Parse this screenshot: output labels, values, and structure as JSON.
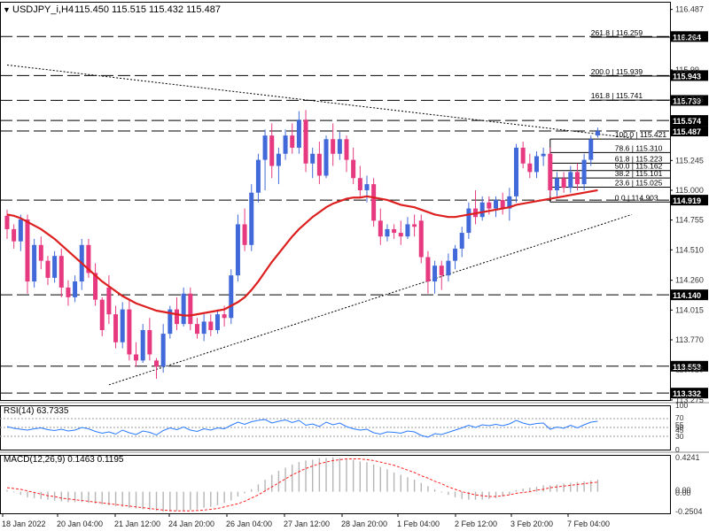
{
  "header": {
    "arrow": "▼",
    "symbol": "USDJPY_i,H4",
    "ohlc": "115.450 115.515 115.432 115.487"
  },
  "colors": {
    "bull": "#4169d9",
    "bear": "#e6397f",
    "ma": "#dd1f1f",
    "rsi": "#2979ff",
    "macd_hist": "#b5b5b5",
    "macd_signal": "#ff2020",
    "label_bg": "#000000",
    "label_text": "#ffffff"
  },
  "chart_data": [
    {
      "type": "candlestick",
      "title": "USDJPY_i,H4",
      "ylim": [
        113.275,
        116.55
      ],
      "y_ticks": [
        "116.487",
        "116.25",
        "115.99",
        "115.745",
        "115.245",
        "115.000",
        "114.755",
        "114.510",
        "114.260",
        "114.015",
        "113.770",
        "113.525",
        "113.275"
      ],
      "x_labels": [
        "18 Jan 2022",
        "20 Jan 04:00",
        "21 Jan 12:00",
        "24 Jan 20:00",
        "26 Jan 04:00",
        "27 Jan 12:00",
        "28 Jan 20:00",
        "1 Feb 04:00",
        "2 Feb 12:00",
        "3 Feb 20:00",
        "7 Feb 04:00"
      ],
      "candles": [
        [
          114.79,
          114.84,
          114.6,
          114.68
        ],
        [
          114.68,
          114.72,
          114.52,
          114.58
        ],
        [
          114.58,
          114.8,
          114.5,
          114.76
        ],
        [
          114.76,
          114.8,
          114.15,
          114.25
        ],
        [
          114.25,
          114.6,
          114.2,
          114.55
        ],
        [
          114.55,
          114.62,
          114.35,
          114.42
        ],
        [
          114.42,
          114.46,
          114.22,
          114.28
        ],
        [
          114.28,
          114.5,
          114.24,
          114.46
        ],
        [
          114.46,
          114.52,
          114.12,
          114.2
        ],
        [
          114.2,
          114.26,
          114.05,
          114.12
        ],
        [
          114.12,
          114.3,
          114.08,
          114.25
        ],
        [
          114.25,
          114.6,
          114.18,
          114.55
        ],
        [
          114.55,
          114.6,
          114.28,
          114.32
        ],
        [
          114.32,
          114.4,
          114.05,
          114.1
        ],
        [
          114.1,
          114.12,
          113.8,
          113.85
        ],
        [
          114.2,
          114.3,
          113.9,
          113.98
        ],
        [
          113.98,
          114.05,
          113.7,
          113.75
        ],
        [
          113.75,
          114.08,
          113.7,
          114.02
        ],
        [
          114.02,
          114.1,
          113.6,
          113.65
        ],
        [
          113.65,
          113.75,
          113.55,
          113.6
        ],
        [
          113.6,
          113.9,
          113.58,
          113.85
        ],
        [
          113.85,
          113.95,
          113.6,
          113.65
        ],
        [
          113.6,
          113.62,
          113.45,
          113.55
        ],
        [
          113.55,
          113.9,
          113.5,
          113.82
        ],
        [
          113.82,
          114.05,
          113.78,
          114.02
        ],
        [
          114.02,
          114.12,
          113.85,
          113.9
        ],
        [
          113.9,
          114.2,
          113.88,
          114.15
        ],
        [
          114.15,
          114.2,
          113.85,
          113.9
        ],
        [
          113.9,
          113.95,
          113.78,
          113.82
        ],
        [
          113.82,
          113.98,
          113.76,
          113.92
        ],
        [
          113.92,
          113.98,
          113.8,
          113.85
        ],
        [
          113.85,
          114.02,
          113.82,
          113.98
        ],
        [
          113.98,
          114.05,
          113.88,
          113.95
        ],
        [
          113.95,
          114.35,
          113.9,
          114.3
        ],
        [
          114.3,
          114.8,
          114.25,
          114.72
        ],
        [
          114.72,
          114.85,
          114.5,
          114.55
        ],
        [
          114.55,
          115.05,
          114.5,
          114.98
        ],
        [
          114.98,
          115.3,
          114.9,
          115.25
        ],
        [
          115.25,
          115.5,
          115.0,
          115.45
        ],
        [
          115.45,
          115.55,
          115.1,
          115.2
        ],
        [
          115.2,
          115.35,
          115.05,
          115.3
        ],
        [
          115.3,
          115.5,
          115.25,
          115.45
        ],
        [
          115.45,
          115.55,
          115.3,
          115.35
        ],
        [
          115.35,
          115.65,
          115.3,
          115.58
        ],
        [
          115.58,
          115.66,
          115.15,
          115.22
        ],
        [
          115.22,
          115.35,
          115.1,
          115.3
        ],
        [
          115.3,
          115.4,
          115.05,
          115.12
        ],
        [
          115.12,
          115.45,
          115.1,
          115.42
        ],
        [
          115.42,
          115.55,
          115.2,
          115.3
        ],
        [
          115.3,
          115.48,
          115.25,
          115.42
        ],
        [
          115.42,
          115.45,
          115.15,
          115.25
        ],
        [
          115.25,
          115.35,
          115.05,
          115.1
        ],
        [
          115.1,
          115.2,
          114.95,
          115.0
        ],
        [
          115.0,
          115.12,
          114.9,
          115.05
        ],
        [
          115.05,
          115.1,
          114.7,
          114.75
        ],
        [
          114.75,
          114.85,
          114.55,
          114.62
        ],
        [
          114.62,
          114.72,
          114.58,
          114.68
        ],
        [
          114.68,
          114.72,
          114.6,
          114.65
        ],
        [
          114.65,
          114.75,
          114.55,
          114.62
        ],
        [
          114.62,
          114.78,
          114.6,
          114.72
        ],
        [
          114.72,
          114.8,
          114.62,
          114.7
        ],
        [
          114.75,
          114.8,
          114.4,
          114.45
        ],
        [
          114.45,
          114.5,
          114.15,
          114.25
        ],
        [
          114.25,
          114.42,
          114.15,
          114.38
        ],
        [
          114.38,
          114.42,
          114.18,
          114.3
        ],
        [
          114.3,
          114.48,
          114.25,
          114.42
        ],
        [
          114.42,
          114.55,
          114.35,
          114.52
        ],
        [
          114.52,
          114.7,
          114.45,
          114.65
        ],
        [
          114.65,
          114.9,
          114.6,
          114.85
        ],
        [
          114.85,
          115.0,
          114.72,
          114.78
        ],
        [
          114.78,
          114.95,
          114.75,
          114.9
        ],
        [
          114.9,
          114.95,
          114.8,
          114.85
        ],
        [
          114.85,
          114.95,
          114.78,
          114.92
        ],
        [
          114.92,
          114.98,
          114.8,
          114.85
        ],
        [
          114.85,
          115.02,
          114.75,
          114.95
        ],
        [
          114.95,
          115.38,
          114.9,
          115.35
        ],
        [
          115.35,
          115.4,
          115.18,
          115.22
        ],
        [
          115.22,
          115.3,
          115.1,
          115.15
        ],
        [
          115.15,
          115.32,
          115.1,
          115.28
        ],
        [
          115.28,
          115.35,
          115.2,
          115.3
        ],
        [
          115.3,
          115.35,
          114.95,
          115.0
        ],
        [
          115.0,
          115.15,
          114.95,
          115.1
        ],
        [
          115.1,
          115.15,
          114.98,
          115.02
        ],
        [
          115.02,
          115.2,
          114.98,
          115.15
        ],
        [
          115.15,
          115.22,
          115.0,
          115.05
        ],
        [
          115.05,
          115.3,
          115.0,
          115.25
        ],
        [
          115.25,
          115.45,
          115.2,
          115.42
        ],
        [
          115.45,
          115.515,
          115.432,
          115.487
        ]
      ],
      "ma": [
        114.8,
        114.79,
        114.77,
        114.74,
        114.71,
        114.68,
        114.64,
        114.6,
        114.55,
        114.5,
        114.45,
        114.4,
        114.35,
        114.3,
        114.25,
        114.21,
        114.17,
        114.13,
        114.1,
        114.07,
        114.05,
        114.03,
        114.01,
        114.0,
        113.99,
        113.98,
        113.97,
        113.97,
        113.98,
        113.99,
        114.0,
        114.01,
        114.02,
        114.05,
        114.08,
        114.12,
        114.18,
        114.25,
        114.33,
        114.41,
        114.48,
        114.55,
        114.62,
        114.68,
        114.73,
        114.78,
        114.82,
        114.86,
        114.89,
        114.91,
        114.93,
        114.94,
        114.94,
        114.95,
        114.94,
        114.93,
        114.92,
        114.9,
        114.88,
        114.87,
        114.86,
        114.84,
        114.82,
        114.8,
        114.79,
        114.78,
        114.78,
        114.79,
        114.8,
        114.81,
        114.82,
        114.83,
        114.84,
        114.85,
        114.86,
        114.88,
        114.89,
        114.9,
        114.91,
        114.92,
        114.93,
        114.94,
        114.95,
        114.96,
        114.97,
        114.98,
        114.99,
        115.0
      ],
      "h_levels": [
        {
          "value": 116.264,
          "label": "116.264"
        },
        {
          "value": 115.943,
          "label": "115.943"
        },
        {
          "value": 115.739,
          "label": "115.739"
        },
        {
          "value": 115.574,
          "label": "115.574"
        },
        {
          "value": 115.487,
          "label": "115.487"
        },
        {
          "value": 114.919,
          "label": "114.919"
        },
        {
          "value": 114.14,
          "label": "114.140"
        },
        {
          "value": 113.553,
          "label": "113.553"
        },
        {
          "value": 113.332,
          "label": "113.332"
        }
      ],
      "fibonacci": [
        {
          "label": "261.8 | 116.259",
          "value": 116.259,
          "extension": true
        },
        {
          "label": "200.0 | 115.939",
          "value": 115.939,
          "extension": true
        },
        {
          "label": "161.8 | 115.741",
          "value": 115.741,
          "extension": true
        },
        {
          "label": "100.0 | 115.421",
          "value": 115.421,
          "extension": false
        },
        {
          "label": "78.6 | 115.310",
          "value": 115.31,
          "extension": false
        },
        {
          "label": "61.8 | 115.223",
          "value": 115.223,
          "extension": false
        },
        {
          "label": "50.0 | 115.162",
          "value": 115.162,
          "extension": false
        },
        {
          "label": "38.2 | 115.101",
          "value": 115.101,
          "extension": false
        },
        {
          "label": "23.6 | 115.025",
          "value": 115.025,
          "extension": false
        },
        {
          "label": "0.0 | 114.903",
          "value": 114.903,
          "extension": false
        }
      ],
      "trendlines": [
        {
          "from": {
            "bar": 0,
            "value": 116.03
          },
          "to": {
            "bar": 92,
            "value": 115.43
          }
        },
        {
          "from": {
            "bar": 15,
            "value": 113.4
          },
          "to": {
            "bar": 92,
            "value": 114.8
          }
        }
      ]
    },
    {
      "type": "line",
      "title": "RSI(14) 63.7335",
      "ylim": [
        0,
        100
      ],
      "levels": [
        70,
        50,
        30
      ],
      "y_tick_labels": [
        "100",
        "70",
        "55",
        "50",
        "45",
        "30",
        "0"
      ],
      "values": [
        52,
        48,
        46,
        44,
        47,
        49,
        45,
        43,
        46,
        42,
        44,
        50,
        47,
        41,
        37,
        40,
        35,
        44,
        38,
        34,
        42,
        39,
        33,
        43,
        49,
        45,
        51,
        44,
        41,
        47,
        44,
        49,
        47,
        55,
        62,
        57,
        63,
        66,
        68,
        60,
        64,
        67,
        61,
        66,
        55,
        58,
        52,
        62,
        56,
        60,
        52,
        47,
        44,
        46,
        38,
        35,
        40,
        39,
        37,
        42,
        40,
        32,
        28,
        36,
        34,
        39,
        44,
        49,
        55,
        50,
        56,
        54,
        57,
        54,
        58,
        66,
        60,
        56,
        59,
        60,
        46,
        51,
        48,
        55,
        49,
        56,
        62,
        64
      ]
    },
    {
      "type": "bar",
      "title": "MACD(12,26,9) 0.1463 0.1195",
      "ylim": [
        -0.27,
        0.46
      ],
      "y_tick_labels": [
        "0.4241",
        "0.00",
        "0.00",
        "-0.2504"
      ],
      "histogram": [
        0.02,
        -0.01,
        -0.04,
        -0.07,
        -0.08,
        -0.09,
        -0.1,
        -0.11,
        -0.12,
        -0.13,
        -0.13,
        -0.13,
        -0.14,
        -0.15,
        -0.16,
        -0.17,
        -0.18,
        -0.19,
        -0.2,
        -0.21,
        -0.22,
        -0.23,
        -0.24,
        -0.25,
        -0.25,
        -0.24,
        -0.24,
        -0.23,
        -0.22,
        -0.2,
        -0.19,
        -0.17,
        -0.14,
        -0.11,
        -0.06,
        -0.02,
        0.03,
        0.09,
        0.15,
        0.21,
        0.26,
        0.3,
        0.34,
        0.37,
        0.39,
        0.4,
        0.42,
        0.42,
        0.43,
        0.42,
        0.41,
        0.4,
        0.38,
        0.37,
        0.34,
        0.31,
        0.28,
        0.24,
        0.21,
        0.18,
        0.15,
        0.11,
        0.07,
        0.03,
        -0.01,
        -0.04,
        -0.07,
        -0.09,
        -0.1,
        -0.1,
        -0.1,
        -0.09,
        -0.08,
        -0.06,
        -0.04,
        0.02,
        0.04,
        0.05,
        0.06,
        0.08,
        0.08,
        0.09,
        0.1,
        0.11,
        0.12,
        0.13,
        0.14,
        0.15
      ],
      "signal": [
        0.05,
        0.04,
        0.03,
        0.01,
        -0.01,
        -0.03,
        -0.05,
        -0.06,
        -0.08,
        -0.09,
        -0.1,
        -0.11,
        -0.12,
        -0.13,
        -0.14,
        -0.15,
        -0.16,
        -0.17,
        -0.18,
        -0.19,
        -0.2,
        -0.21,
        -0.22,
        -0.23,
        -0.235,
        -0.24,
        -0.24,
        -0.24,
        -0.235,
        -0.23,
        -0.22,
        -0.21,
        -0.19,
        -0.17,
        -0.15,
        -0.12,
        -0.08,
        -0.04,
        0.01,
        0.06,
        0.11,
        0.16,
        0.21,
        0.25,
        0.29,
        0.32,
        0.35,
        0.37,
        0.39,
        0.4,
        0.41,
        0.41,
        0.41,
        0.4,
        0.39,
        0.37,
        0.35,
        0.33,
        0.3,
        0.27,
        0.24,
        0.2,
        0.17,
        0.13,
        0.1,
        0.06,
        0.03,
        0.0,
        -0.02,
        -0.04,
        -0.05,
        -0.06,
        -0.06,
        -0.05,
        -0.04,
        -0.02,
        -0.01,
        0.0,
        0.02,
        0.03,
        0.05,
        0.06,
        0.07,
        0.08,
        0.09,
        0.1,
        0.11,
        0.12
      ]
    }
  ]
}
